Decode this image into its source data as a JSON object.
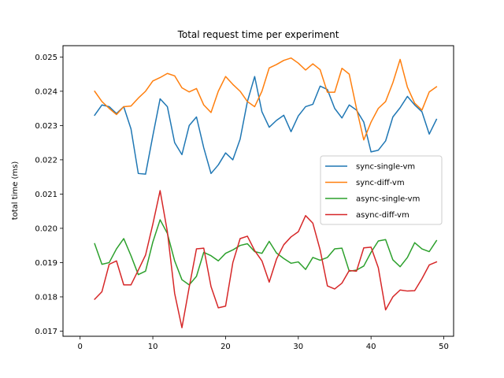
{
  "chart_data": {
    "type": "line",
    "title": "Total request time per experiment",
    "xlabel": "",
    "ylabel": "total time (ms)",
    "xlim": [
      -2.35,
      51.35
    ],
    "ylim": [
      0.01685,
      0.02533
    ],
    "xticks": [
      0,
      10,
      20,
      30,
      40,
      50
    ],
    "yticks": [
      0.017,
      0.018,
      0.019,
      0.02,
      0.021,
      0.022,
      0.023,
      0.024,
      0.025
    ],
    "ytick_labels": [
      "0.017",
      "0.018",
      "0.019",
      "0.020",
      "0.021",
      "0.022",
      "0.023",
      "0.024",
      "0.025"
    ],
    "xtick_labels": [
      "0",
      "10",
      "20",
      "30",
      "40",
      "50"
    ],
    "grid": false,
    "legend_position": "center-right",
    "x": [
      2,
      3,
      4,
      5,
      6,
      7,
      8,
      9,
      10,
      11,
      12,
      13,
      14,
      15,
      16,
      17,
      18,
      19,
      20,
      21,
      22,
      23,
      24,
      25,
      26,
      27,
      28,
      29,
      30,
      31,
      32,
      33,
      34,
      35,
      36,
      37,
      38,
      39,
      40,
      41,
      42,
      43,
      44,
      45,
      46,
      47,
      48,
      49
    ],
    "series": [
      {
        "name": "sync-single-vm",
        "color": "#1f77b4",
        "values": [
          0.0233,
          0.0236,
          0.02355,
          0.02335,
          0.02355,
          0.0229,
          0.0216,
          0.02158,
          0.0227,
          0.02378,
          0.02355,
          0.0225,
          0.02215,
          0.023,
          0.02325,
          0.02235,
          0.0216,
          0.02185,
          0.0222,
          0.022,
          0.0226,
          0.0237,
          0.02443,
          0.0234,
          0.02295,
          0.02315,
          0.0233,
          0.02282,
          0.02328,
          0.02355,
          0.02362,
          0.02415,
          0.02405,
          0.0235,
          0.02322,
          0.0236,
          0.02345,
          0.0231,
          0.02223,
          0.02228,
          0.02255,
          0.02325,
          0.02352,
          0.02385,
          0.0236,
          0.0234,
          0.02275,
          0.02318
        ]
      },
      {
        "name": "sync-diff-vm",
        "color": "#ff7f0e",
        "values": [
          0.024,
          0.0237,
          0.0235,
          0.02332,
          0.02355,
          0.02357,
          0.0238,
          0.024,
          0.0243,
          0.0244,
          0.02452,
          0.02445,
          0.0241,
          0.02398,
          0.02408,
          0.0236,
          0.02338,
          0.024,
          0.02443,
          0.0242,
          0.024,
          0.0237,
          0.02355,
          0.024,
          0.02468,
          0.02478,
          0.0249,
          0.02497,
          0.02482,
          0.02462,
          0.0248,
          0.02463,
          0.02397,
          0.02397,
          0.02467,
          0.0245,
          0.0235,
          0.02258,
          0.0231,
          0.0235,
          0.0237,
          0.02425,
          0.02493,
          0.02412,
          0.02365,
          0.02345,
          0.02398,
          0.02413
        ]
      },
      {
        "name": "async-single-vm",
        "color": "#2ca02c",
        "values": [
          0.01955,
          0.01895,
          0.019,
          0.0194,
          0.0197,
          0.0192,
          0.01865,
          0.01875,
          0.0196,
          0.02025,
          0.01985,
          0.01905,
          0.0185,
          0.01835,
          0.0186,
          0.0193,
          0.0192,
          0.01905,
          0.01927,
          0.01937,
          0.0195,
          0.01955,
          0.01932,
          0.01927,
          0.01962,
          0.01928,
          0.01912,
          0.01898,
          0.01902,
          0.0188,
          0.01915,
          0.01907,
          0.01915,
          0.0194,
          0.01942,
          0.01875,
          0.01878,
          0.0189,
          0.0193,
          0.01963,
          0.01967,
          0.01908,
          0.01888,
          0.01915,
          0.01958,
          0.0194,
          0.01932,
          0.01964
        ]
      },
      {
        "name": "async-diff-vm",
        "color": "#d62728",
        "values": [
          0.01793,
          0.01815,
          0.01895,
          0.01905,
          0.01835,
          0.01835,
          0.01878,
          0.01922,
          0.02012,
          0.0211,
          0.0199,
          0.0181,
          0.0171,
          0.01828,
          0.0194,
          0.01942,
          0.0183,
          0.01768,
          0.01773,
          0.019,
          0.0197,
          0.01977,
          0.01935,
          0.01905,
          0.01843,
          0.0191,
          0.01952,
          0.01975,
          0.0199,
          0.02037,
          0.02015,
          0.01937,
          0.01832,
          0.01823,
          0.0184,
          0.01877,
          0.01875,
          0.01943,
          0.01945,
          0.01885,
          0.01762,
          0.018,
          0.0182,
          0.01817,
          0.01818,
          0.01853,
          0.01893,
          0.01902
        ]
      }
    ]
  }
}
